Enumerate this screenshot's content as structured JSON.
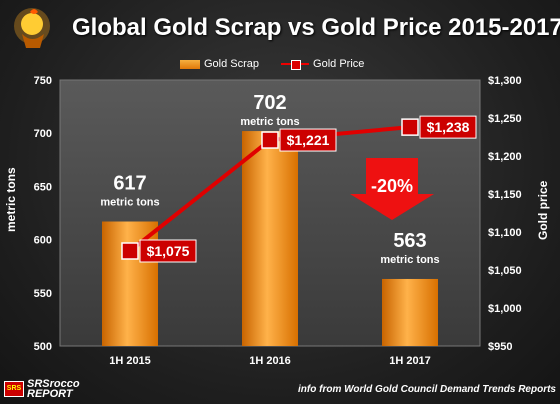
{
  "title": "Global Gold Scrap vs Gold Price 2015-2017",
  "legend": {
    "bar_label": "Gold Scrap",
    "line_label": "Gold Price"
  },
  "source": "info from World Gold Council Demand Trends Reports",
  "logo": {
    "mark": "SRSrocco",
    "text_top": "SRSrocco",
    "text_bottom": "REPORT"
  },
  "colors": {
    "bar": "#f08c1a",
    "line": "#e00000",
    "marker": "#cc0000",
    "arrow": "#ee1111"
  },
  "chart_data": {
    "type": "bar",
    "title": "Global Gold Scrap vs Gold Price 2015-2017",
    "categories": [
      "1H 2015",
      "1H 2016",
      "1H 2017"
    ],
    "series": [
      {
        "name": "Gold Scrap",
        "type": "bar",
        "axis": "left",
        "values": [
          617,
          702,
          563
        ],
        "value_labels": [
          "617",
          "702",
          "563"
        ],
        "unit_label": "metric tons"
      },
      {
        "name": "Gold Price",
        "type": "line",
        "axis": "right",
        "values": [
          1075,
          1221,
          1238
        ],
        "value_labels": [
          "$1,075",
          "$1,221",
          "$1,238"
        ]
      }
    ],
    "ylabel": "metric tons",
    "y2label": "Gold  price",
    "ylim": [
      500,
      750
    ],
    "y_ticks": [
      500,
      550,
      600,
      650,
      700,
      750
    ],
    "y2lim": [
      950,
      1300
    ],
    "y2_ticks": [
      "$950",
      "$1,000",
      "$1,050",
      "$1,100",
      "$1,150",
      "$1,200",
      "$1,250",
      "$1,300"
    ],
    "y2_tick_values": [
      950,
      1000,
      1050,
      1100,
      1150,
      1200,
      1250,
      1300
    ],
    "annotation": "-20%",
    "grid": false,
    "legend_position": "top"
  }
}
